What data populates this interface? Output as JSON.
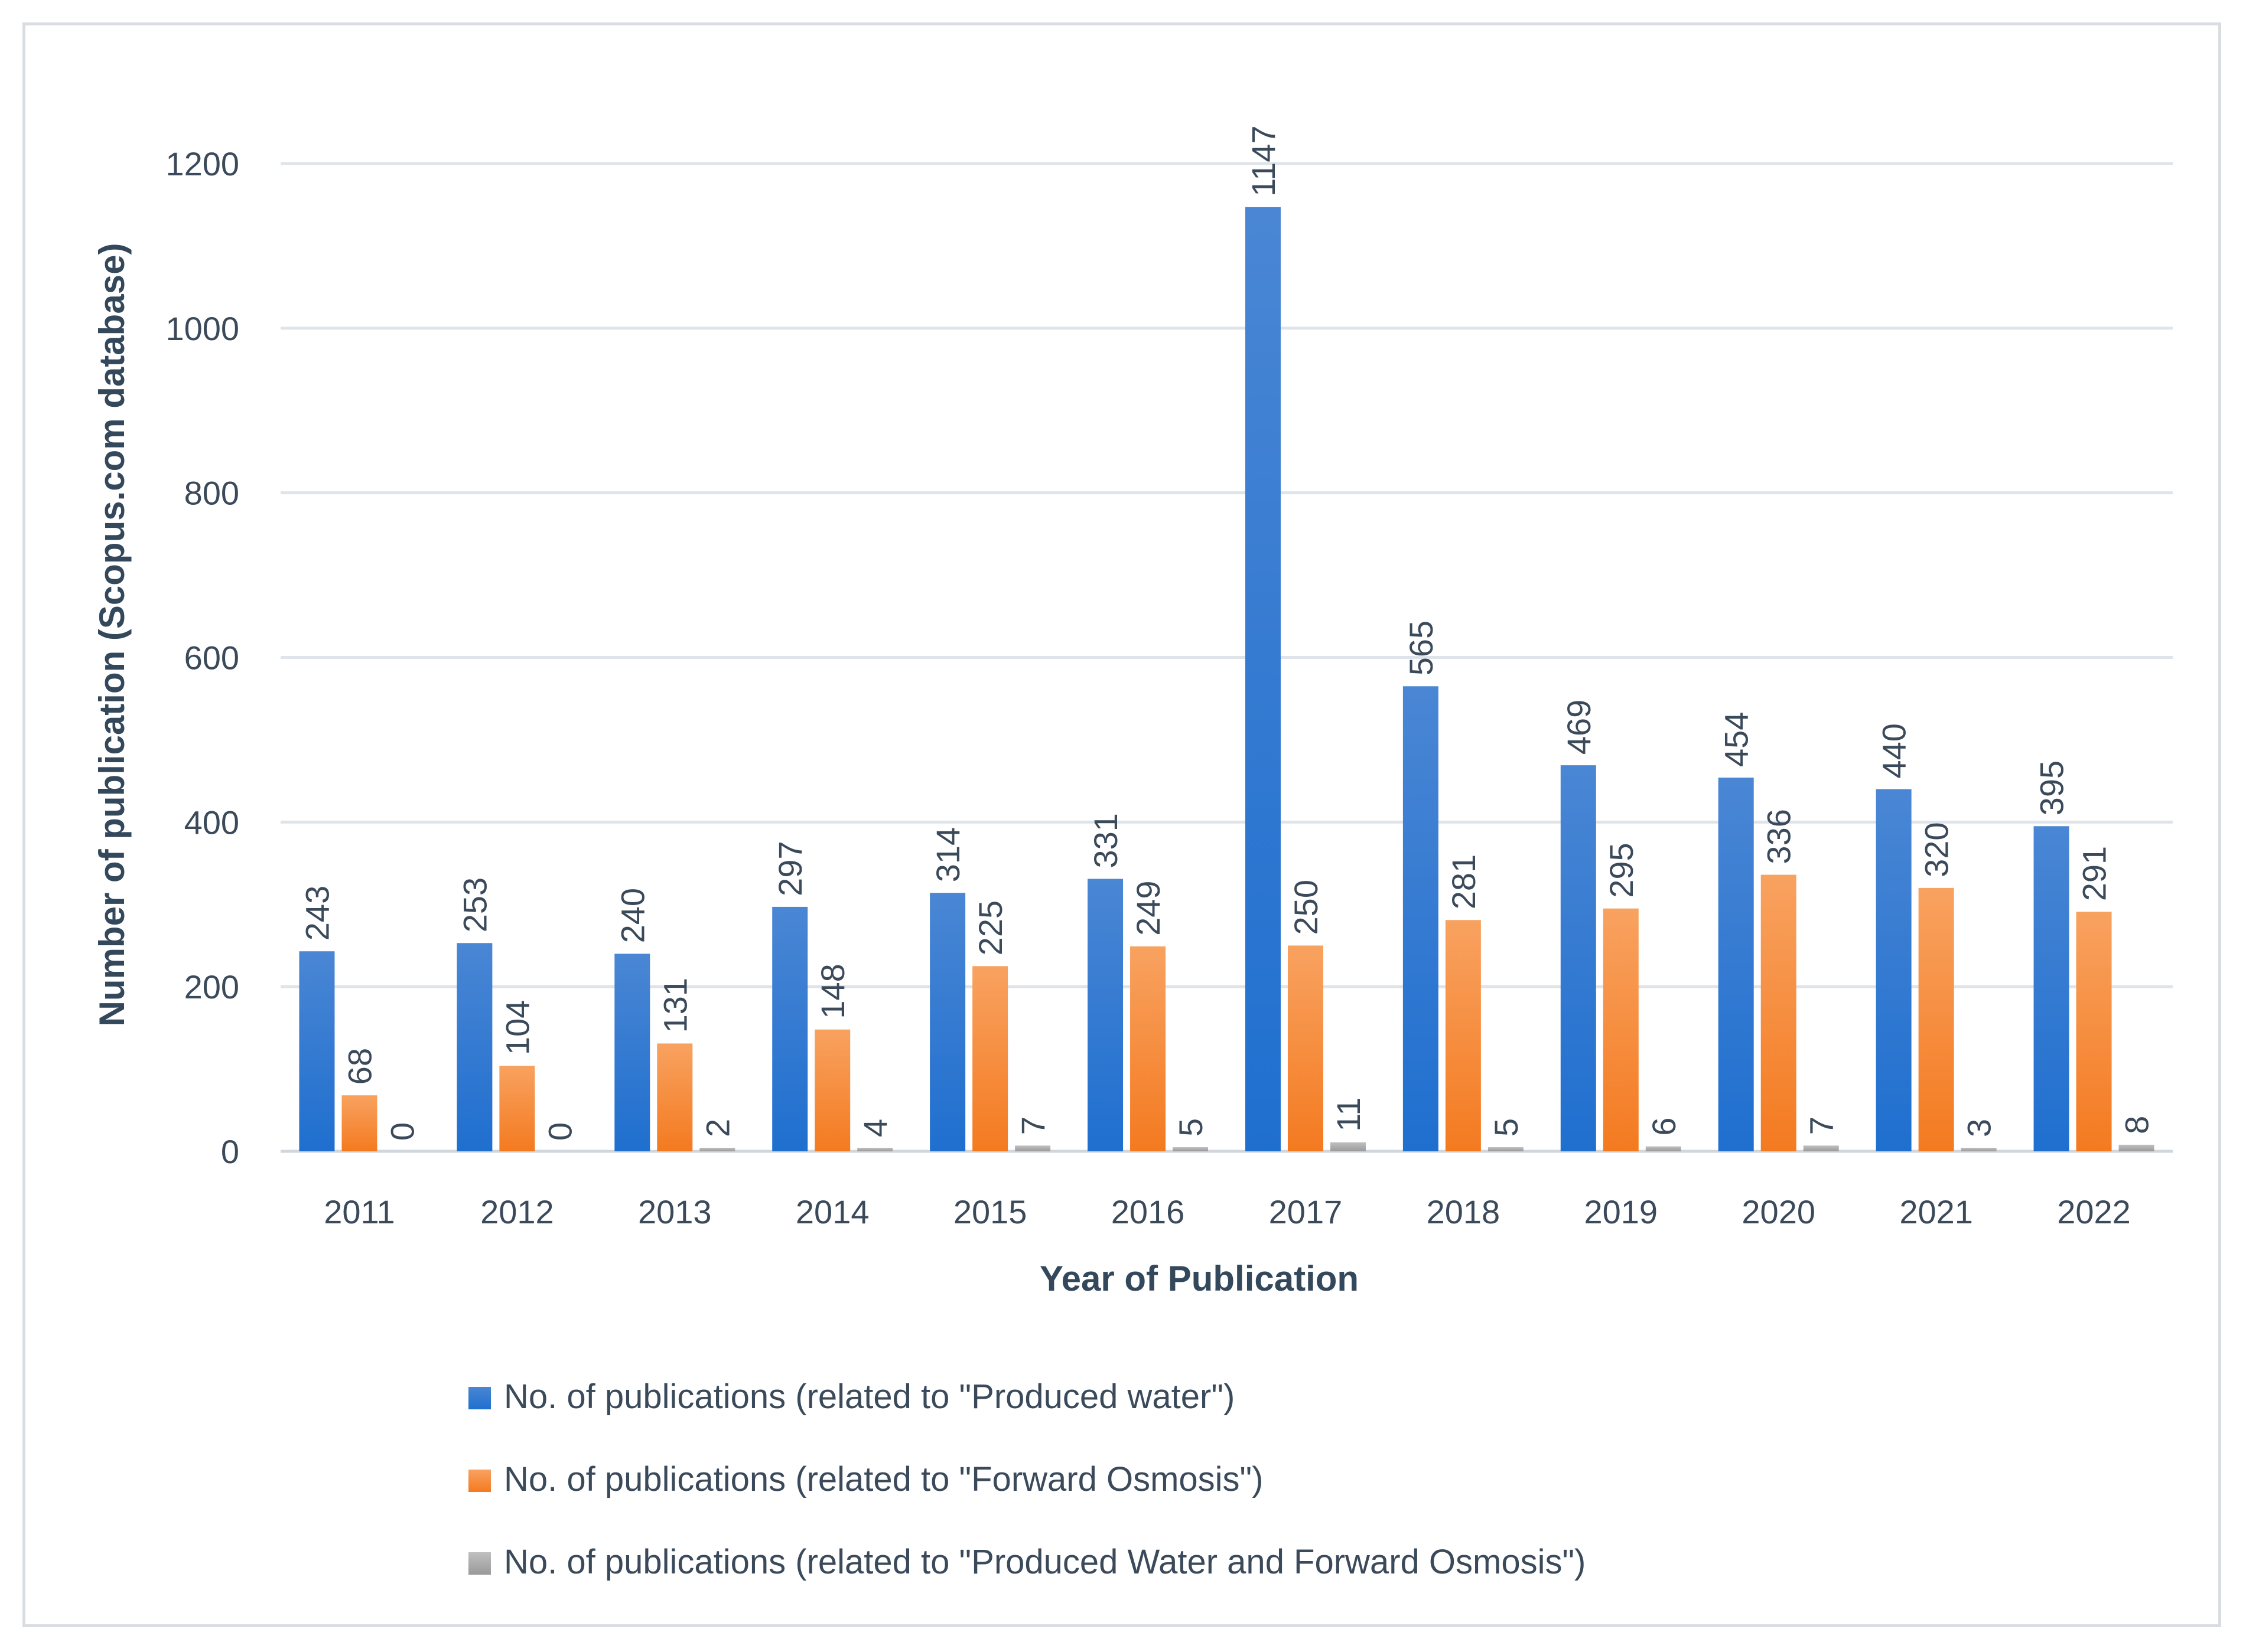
{
  "chart_data": {
    "type": "bar",
    "title": "",
    "xlabel": "Year of Publication",
    "ylabel": "Number of publication (Scopus.com database)",
    "ylim": [
      0,
      1200
    ],
    "yticks": [
      0,
      200,
      400,
      600,
      800,
      1000,
      1200
    ],
    "grid": true,
    "legend_position": "bottom",
    "categories": [
      "2011",
      "2012",
      "2013",
      "2014",
      "2015",
      "2016",
      "2017",
      "2018",
      "2019",
      "2020",
      "2021",
      "2022"
    ],
    "series": [
      {
        "name": "No. of publications (related to \"Produced water\")",
        "color": "#1f6fcf",
        "color_light": "#4a86d4",
        "values": [
          243,
          253,
          240,
          297,
          314,
          331,
          1147,
          565,
          469,
          454,
          440,
          395
        ]
      },
      {
        "name": "No. of publications (related to \"Forward Osmosis\")",
        "color": "#f47a20",
        "color_light": "#f8a260",
        "values": [
          68,
          104,
          131,
          148,
          225,
          249,
          250,
          281,
          295,
          336,
          320,
          291
        ]
      },
      {
        "name": "No. of publications (related to \"Produced Water and Forward Osmosis\")",
        "color": "#9a9a9a",
        "color_light": "#c0c0c0",
        "values": [
          0,
          0,
          2,
          4,
          7,
          5,
          11,
          5,
          6,
          7,
          3,
          8
        ]
      }
    ]
  }
}
